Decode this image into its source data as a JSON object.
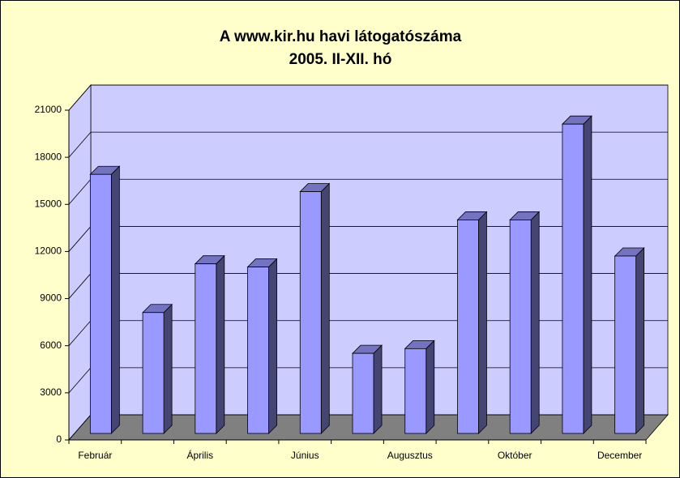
{
  "chart_data": {
    "type": "bar3d",
    "title": "A www.kir.hu havi látogatószáma",
    "subtitle": "2005. II-XII. hó",
    "categories": [
      "Február",
      null,
      "Április",
      null,
      "Június",
      null,
      "Augusztus",
      null,
      "Október",
      null,
      "December"
    ],
    "values": [
      16500,
      7700,
      10800,
      10600,
      15400,
      5100,
      5400,
      13600,
      13600,
      19700,
      11300
    ],
    "color": "#9999ff",
    "ylim": [
      0,
      21000
    ],
    "yticks": [
      0,
      3000,
      6000,
      9000,
      12000,
      15000,
      18000,
      21000
    ],
    "grid": true
  }
}
